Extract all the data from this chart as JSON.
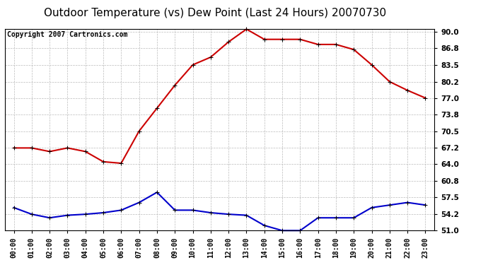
{
  "title": "Outdoor Temperature (vs) Dew Point (Last 24 Hours) 20070730",
  "copyright_text": "Copyright 2007 Cartronics.com",
  "hours": [
    "00:00",
    "01:00",
    "02:00",
    "03:00",
    "04:00",
    "05:00",
    "06:00",
    "07:00",
    "08:00",
    "09:00",
    "10:00",
    "11:00",
    "12:00",
    "13:00",
    "14:00",
    "15:00",
    "16:00",
    "17:00",
    "18:00",
    "19:00",
    "20:00",
    "21:00",
    "22:00",
    "23:00"
  ],
  "temp": [
    67.2,
    67.2,
    66.5,
    67.2,
    66.5,
    64.5,
    64.2,
    70.5,
    75.0,
    79.5,
    83.5,
    85.0,
    88.0,
    90.5,
    88.5,
    88.5,
    88.5,
    87.5,
    87.5,
    86.5,
    83.5,
    80.2,
    78.5,
    77.0
  ],
  "dewpoint": [
    55.5,
    54.2,
    53.5,
    54.0,
    54.2,
    54.5,
    55.0,
    56.5,
    58.5,
    55.0,
    55.0,
    54.5,
    54.2,
    54.0,
    52.0,
    51.0,
    51.0,
    53.5,
    53.5,
    53.5,
    55.5,
    56.0,
    56.5,
    56.0
  ],
  "temp_color": "#cc0000",
  "dew_color": "#0000cc",
  "bg_color": "#ffffff",
  "grid_color": "#bbbbbb",
  "ylim": [
    51.0,
    90.5
  ],
  "yticks": [
    51.0,
    54.2,
    57.5,
    60.8,
    64.0,
    67.2,
    70.5,
    73.8,
    77.0,
    80.2,
    83.5,
    86.8,
    90.0
  ],
  "title_fontsize": 11,
  "copyright_fontsize": 7,
  "marker": "+",
  "markersize": 5,
  "linewidth": 1.5
}
